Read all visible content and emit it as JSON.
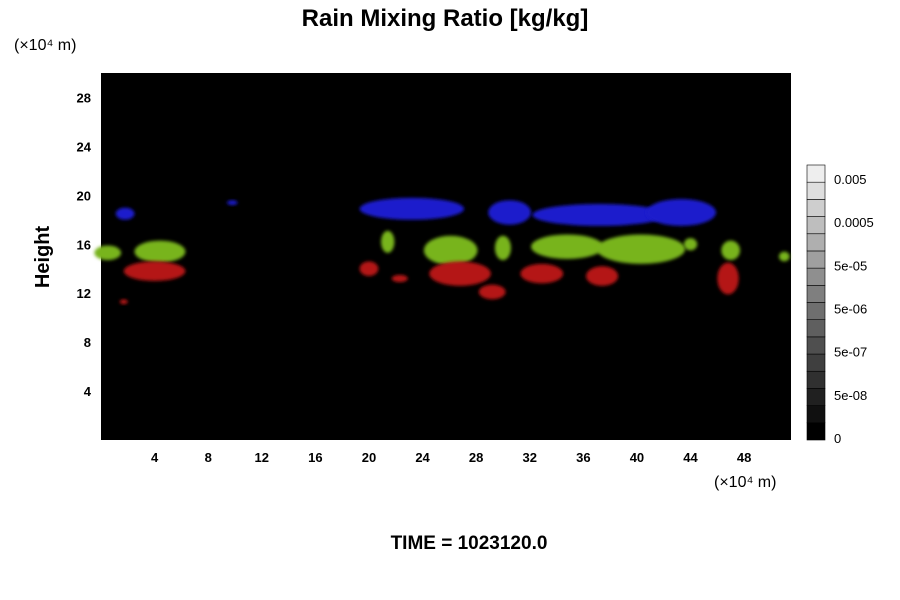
{
  "chart_data": {
    "type": "heatmap",
    "title": "Rain Mixing Ratio [kg/kg]",
    "ylabel": "Height",
    "y_unit": "(×10⁴ m)",
    "x_unit": "(×10⁴ m)",
    "xlim": [
      0,
      51.5
    ],
    "ylim": [
      0,
      30
    ],
    "x_ticks": [
      "4",
      "8",
      "12",
      "16",
      "20",
      "24",
      "28",
      "32",
      "36",
      "40",
      "44",
      "48"
    ],
    "y_ticks": [
      "4",
      "8",
      "12",
      "16",
      "20",
      "24",
      "28"
    ],
    "x_tick_values": [
      4,
      8,
      12,
      16,
      20,
      24,
      28,
      32,
      36,
      40,
      44,
      48
    ],
    "y_tick_values": [
      4,
      8,
      12,
      16,
      20,
      24,
      28
    ],
    "background_color": "#000000",
    "colorbar": {
      "labels": [
        "0.005",
        "0.0005",
        "5e-05",
        "5e-06",
        "5e-07",
        "5e-08",
        "0"
      ],
      "steps": 16,
      "color_low": "#000000",
      "color_high": "#eeeeee"
    },
    "features": [
      {
        "color": "#1a1acc",
        "cx": 1.8,
        "cy": 18.5,
        "rx": 0.7,
        "ry": 0.5
      },
      {
        "color": "#1a1acc",
        "cx": 9.8,
        "cy": 19.4,
        "rx": 0.4,
        "ry": 0.2
      },
      {
        "color": "#1a1acc",
        "cx": 23.2,
        "cy": 18.9,
        "rx": 3.9,
        "ry": 0.9
      },
      {
        "color": "#1a1acc",
        "cx": 30.5,
        "cy": 18.6,
        "rx": 1.6,
        "ry": 1.0
      },
      {
        "color": "#1a1acc",
        "cx": 37.2,
        "cy": 18.4,
        "rx": 5.0,
        "ry": 0.9
      },
      {
        "color": "#1a1acc",
        "cx": 43.3,
        "cy": 18.6,
        "rx": 2.6,
        "ry": 1.1
      },
      {
        "color": "#78b41e",
        "cx": 0.5,
        "cy": 15.3,
        "rx": 1.0,
        "ry": 0.6
      },
      {
        "color": "#78b41e",
        "cx": 4.4,
        "cy": 15.4,
        "rx": 1.9,
        "ry": 0.9
      },
      {
        "color": "#78b41e",
        "cx": 21.4,
        "cy": 16.2,
        "rx": 0.5,
        "ry": 0.9
      },
      {
        "color": "#78b41e",
        "cx": 26.1,
        "cy": 15.5,
        "rx": 2.0,
        "ry": 1.2
      },
      {
        "color": "#78b41e",
        "cx": 30.0,
        "cy": 15.7,
        "rx": 0.6,
        "ry": 1.0
      },
      {
        "color": "#78b41e",
        "cx": 34.8,
        "cy": 15.8,
        "rx": 2.7,
        "ry": 1.0
      },
      {
        "color": "#78b41e",
        "cx": 40.3,
        "cy": 15.6,
        "rx": 3.3,
        "ry": 1.2
      },
      {
        "color": "#78b41e",
        "cx": 44.0,
        "cy": 16.0,
        "rx": 0.5,
        "ry": 0.5
      },
      {
        "color": "#78b41e",
        "cx": 47.0,
        "cy": 15.5,
        "rx": 0.7,
        "ry": 0.8
      },
      {
        "color": "#78b41e",
        "cx": 51.0,
        "cy": 15.0,
        "rx": 0.4,
        "ry": 0.4
      },
      {
        "color": "#b41414",
        "cx": 4.0,
        "cy": 13.8,
        "rx": 2.3,
        "ry": 0.8
      },
      {
        "color": "#b41414",
        "cx": 1.7,
        "cy": 11.3,
        "rx": 0.3,
        "ry": 0.2
      },
      {
        "color": "#b41414",
        "cx": 20.0,
        "cy": 14.0,
        "rx": 0.7,
        "ry": 0.6
      },
      {
        "color": "#b41414",
        "cx": 22.3,
        "cy": 13.2,
        "rx": 0.6,
        "ry": 0.3
      },
      {
        "color": "#b41414",
        "cx": 26.8,
        "cy": 13.6,
        "rx": 2.3,
        "ry": 1.0
      },
      {
        "color": "#b41414",
        "cx": 29.2,
        "cy": 12.1,
        "rx": 1.0,
        "ry": 0.6
      },
      {
        "color": "#b41414",
        "cx": 32.9,
        "cy": 13.6,
        "rx": 1.6,
        "ry": 0.8
      },
      {
        "color": "#b41414",
        "cx": 37.4,
        "cy": 13.4,
        "rx": 1.2,
        "ry": 0.8
      },
      {
        "color": "#b41414",
        "cx": 46.8,
        "cy": 13.2,
        "rx": 0.8,
        "ry": 1.3
      }
    ]
  },
  "footer": {
    "time_label": "TIME = 1023120.0"
  }
}
